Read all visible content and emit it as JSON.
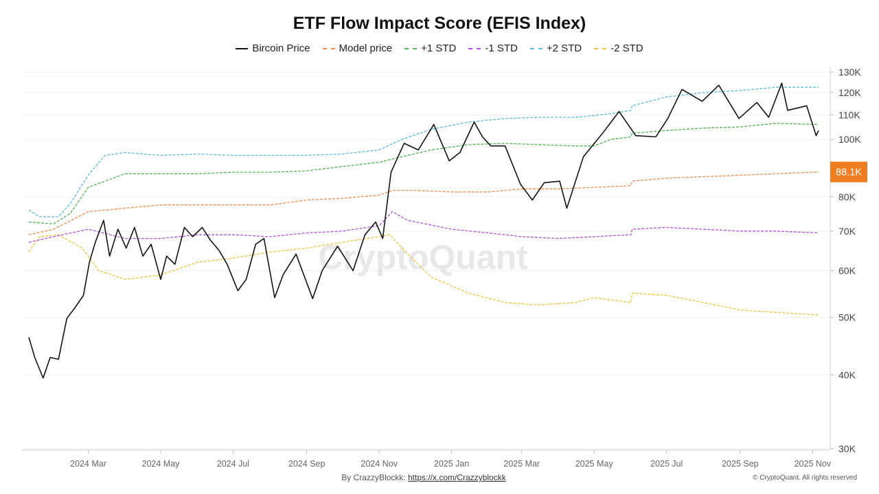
{
  "chart_data": {
    "type": "line",
    "title": "ETF Flow Impact Score (EFIS Index)",
    "xlabel": "",
    "ylabel": "",
    "y_scale": "log",
    "ylim": [
      30000,
      130000
    ],
    "xlim": [
      "2024-01-11",
      "2025-11-06"
    ],
    "x_tick_labels": [
      "2024 Mar",
      "2024 May",
      "2024 Jul",
      "2024 Sep",
      "2024 Nov",
      "2025 Jan",
      "2025 Mar",
      "2025 May",
      "2025 Jul",
      "2025 Sep",
      "2025 Nov"
    ],
    "x_ticks": [
      "2024-03-01",
      "2024-05-01",
      "2024-07-01",
      "2024-09-01",
      "2024-11-01",
      "2025-01-01",
      "2025-03-01",
      "2025-05-01",
      "2025-07-01",
      "2025-09-01",
      "2025-11-01"
    ],
    "y_tick_labels": [
      "30K",
      "40K",
      "50K",
      "60K",
      "70K",
      "80K",
      "100K",
      "110K",
      "120K",
      "130K"
    ],
    "y_ticks": [
      30000,
      40000,
      50000,
      60000,
      70000,
      80000,
      100000,
      110000,
      120000,
      130000
    ],
    "current_value_label": "88.1K",
    "current_value": 88100,
    "grid": true,
    "legend_position": "top-center",
    "series": [
      {
        "name": "Bircoin Price",
        "color": "#111111",
        "dash": "solid",
        "points": [
          [
            "2024-01-11",
            46300
          ],
          [
            "2024-01-16",
            42800
          ],
          [
            "2024-01-23",
            39500
          ],
          [
            "2024-01-29",
            42800
          ],
          [
            "2024-02-05",
            42500
          ],
          [
            "2024-02-12",
            49800
          ],
          [
            "2024-02-19",
            52000
          ],
          [
            "2024-02-26",
            54500
          ],
          [
            "2024-03-02",
            62000
          ],
          [
            "2024-03-07",
            67000
          ],
          [
            "2024-03-14",
            73000
          ],
          [
            "2024-03-19",
            63500
          ],
          [
            "2024-03-26",
            70500
          ],
          [
            "2024-04-02",
            65500
          ],
          [
            "2024-04-09",
            71000
          ],
          [
            "2024-04-16",
            63500
          ],
          [
            "2024-04-23",
            66500
          ],
          [
            "2024-05-01",
            58000
          ],
          [
            "2024-05-06",
            63500
          ],
          [
            "2024-05-13",
            61500
          ],
          [
            "2024-05-21",
            71000
          ],
          [
            "2024-05-28",
            68500
          ],
          [
            "2024-06-05",
            71000
          ],
          [
            "2024-06-12",
            67500
          ],
          [
            "2024-06-19",
            65000
          ],
          [
            "2024-06-26",
            61500
          ],
          [
            "2024-07-05",
            55500
          ],
          [
            "2024-07-12",
            58000
          ],
          [
            "2024-07-20",
            66500
          ],
          [
            "2024-07-27",
            68000
          ],
          [
            "2024-08-05",
            54000
          ],
          [
            "2024-08-12",
            59000
          ],
          [
            "2024-08-23",
            64000
          ],
          [
            "2024-09-06",
            53800
          ],
          [
            "2024-09-14",
            60000
          ],
          [
            "2024-09-27",
            66000
          ],
          [
            "2024-10-10",
            60000
          ],
          [
            "2024-10-20",
            69000
          ],
          [
            "2024-10-29",
            72500
          ],
          [
            "2024-11-04",
            68000
          ],
          [
            "2024-11-11",
            88000
          ],
          [
            "2024-11-22",
            98500
          ],
          [
            "2024-12-04",
            96000
          ],
          [
            "2024-12-17",
            106000
          ],
          [
            "2024-12-30",
            92000
          ],
          [
            "2025-01-08",
            95000
          ],
          [
            "2025-01-20",
            107000
          ],
          [
            "2025-01-27",
            101000
          ],
          [
            "2025-02-03",
            97500
          ],
          [
            "2025-02-15",
            97500
          ],
          [
            "2025-02-28",
            84000
          ],
          [
            "2025-03-10",
            79000
          ],
          [
            "2025-03-20",
            84500
          ],
          [
            "2025-04-02",
            85000
          ],
          [
            "2025-04-08",
            76500
          ],
          [
            "2025-04-22",
            93500
          ],
          [
            "2025-05-09",
            103000
          ],
          [
            "2025-05-22",
            111500
          ],
          [
            "2025-06-05",
            101500
          ],
          [
            "2025-06-22",
            101000
          ],
          [
            "2025-07-02",
            108500
          ],
          [
            "2025-07-14",
            121500
          ],
          [
            "2025-07-31",
            116000
          ],
          [
            "2025-08-14",
            123500
          ],
          [
            "2025-08-31",
            108500
          ],
          [
            "2025-09-15",
            115500
          ],
          [
            "2025-09-25",
            109000
          ],
          [
            "2025-10-06",
            124500
          ],
          [
            "2025-10-11",
            112000
          ],
          [
            "2025-10-27",
            114000
          ],
          [
            "2025-11-04",
            101500
          ],
          [
            "2025-11-06",
            103500
          ]
        ]
      },
      {
        "name": "Model price",
        "color": "#f08a4b",
        "dash": "dashed",
        "points": [
          [
            "2024-01-11",
            69000
          ],
          [
            "2024-02-01",
            70500
          ],
          [
            "2024-03-01",
            75500
          ],
          [
            "2024-04-01",
            76500
          ],
          [
            "2024-05-01",
            77500
          ],
          [
            "2024-06-01",
            77500
          ],
          [
            "2024-07-01",
            77500
          ],
          [
            "2024-08-01",
            77500
          ],
          [
            "2024-09-01",
            79000
          ],
          [
            "2024-10-01",
            79500
          ],
          [
            "2024-11-01",
            80500
          ],
          [
            "2024-11-12",
            82000
          ],
          [
            "2024-12-01",
            82000
          ],
          [
            "2025-01-01",
            81500
          ],
          [
            "2025-02-01",
            81500
          ],
          [
            "2025-03-01",
            82500
          ],
          [
            "2025-04-01",
            82500
          ],
          [
            "2025-05-01",
            83000
          ],
          [
            "2025-06-01",
            83500
          ],
          [
            "2025-06-02",
            85000
          ],
          [
            "2025-07-01",
            86000
          ],
          [
            "2025-08-01",
            86500
          ],
          [
            "2025-09-01",
            87000
          ],
          [
            "2025-10-01",
            87500
          ],
          [
            "2025-11-06",
            88100
          ]
        ]
      },
      {
        "name": "+1 STD",
        "color": "#4cb44c",
        "dash": "dashed",
        "points": [
          [
            "2024-01-11",
            72500
          ],
          [
            "2024-02-01",
            72000
          ],
          [
            "2024-02-15",
            75000
          ],
          [
            "2024-03-01",
            83000
          ],
          [
            "2024-04-01",
            87500
          ],
          [
            "2024-05-01",
            87500
          ],
          [
            "2024-06-01",
            87500
          ],
          [
            "2024-07-01",
            88000
          ],
          [
            "2024-08-01",
            88000
          ],
          [
            "2024-09-01",
            88500
          ],
          [
            "2024-10-01",
            90000
          ],
          [
            "2024-11-01",
            91500
          ],
          [
            "2024-11-20",
            93500
          ],
          [
            "2024-12-15",
            96000
          ],
          [
            "2025-01-15",
            98000
          ],
          [
            "2025-02-15",
            98500
          ],
          [
            "2025-03-15",
            98000
          ],
          [
            "2025-04-15",
            97500
          ],
          [
            "2025-05-01",
            97500
          ],
          [
            "2025-05-15",
            100000
          ],
          [
            "2025-06-01",
            101000
          ],
          [
            "2025-06-02",
            102500
          ],
          [
            "2025-07-01",
            103500
          ],
          [
            "2025-08-01",
            104500
          ],
          [
            "2025-09-01",
            105000
          ],
          [
            "2025-10-01",
            106500
          ],
          [
            "2025-11-06",
            106000
          ]
        ]
      },
      {
        "name": "-1 STD",
        "color": "#b64ce0",
        "dash": "dashed",
        "points": [
          [
            "2024-01-11",
            67000
          ],
          [
            "2024-02-01",
            68500
          ],
          [
            "2024-03-01",
            70500
          ],
          [
            "2024-04-01",
            68000
          ],
          [
            "2024-05-01",
            68000
          ],
          [
            "2024-06-01",
            69000
          ],
          [
            "2024-07-01",
            69000
          ],
          [
            "2024-08-01",
            68500
          ],
          [
            "2024-09-01",
            69500
          ],
          [
            "2024-10-01",
            70000
          ],
          [
            "2024-11-01",
            71500
          ],
          [
            "2024-11-12",
            75500
          ],
          [
            "2024-11-25",
            73000
          ],
          [
            "2025-01-01",
            70500
          ],
          [
            "2025-02-01",
            69500
          ],
          [
            "2025-03-01",
            68500
          ],
          [
            "2025-04-01",
            68000
          ],
          [
            "2025-05-01",
            68500
          ],
          [
            "2025-06-01",
            69000
          ],
          [
            "2025-06-02",
            70500
          ],
          [
            "2025-07-01",
            71000
          ],
          [
            "2025-08-01",
            70500
          ],
          [
            "2025-09-01",
            70000
          ],
          [
            "2025-10-01",
            70000
          ],
          [
            "2025-11-06",
            69500
          ]
        ]
      },
      {
        "name": "+2 STD",
        "color": "#5bbcd8",
        "dash": "dashed",
        "points": [
          [
            "2024-01-11",
            76000
          ],
          [
            "2024-01-20",
            74000
          ],
          [
            "2024-02-05",
            74000
          ],
          [
            "2024-02-15",
            78000
          ],
          [
            "2024-03-01",
            87000
          ],
          [
            "2024-03-15",
            94000
          ],
          [
            "2024-04-01",
            95000
          ],
          [
            "2024-05-01",
            94000
          ],
          [
            "2024-06-01",
            94500
          ],
          [
            "2024-07-01",
            94000
          ],
          [
            "2024-08-01",
            94000
          ],
          [
            "2024-09-01",
            94000
          ],
          [
            "2024-10-01",
            94500
          ],
          [
            "2024-11-01",
            96000
          ],
          [
            "2024-11-20",
            100000
          ],
          [
            "2024-12-15",
            104000
          ],
          [
            "2025-01-15",
            107000
          ],
          [
            "2025-02-15",
            108500
          ],
          [
            "2025-03-15",
            109000
          ],
          [
            "2025-04-15",
            109000
          ],
          [
            "2025-05-15",
            110500
          ],
          [
            "2025-06-01",
            112000
          ],
          [
            "2025-06-02",
            114000
          ],
          [
            "2025-07-01",
            118000
          ],
          [
            "2025-08-01",
            120000
          ],
          [
            "2025-09-01",
            121000
          ],
          [
            "2025-10-01",
            122500
          ],
          [
            "2025-11-06",
            122500
          ]
        ]
      },
      {
        "name": "-2 STD",
        "color": "#f2c23a",
        "dash": "dashed",
        "points": [
          [
            "2024-01-11",
            64500
          ],
          [
            "2024-01-20",
            68500
          ],
          [
            "2024-02-05",
            69000
          ],
          [
            "2024-02-25",
            65500
          ],
          [
            "2024-03-10",
            60000
          ],
          [
            "2024-04-01",
            58000
          ],
          [
            "2024-05-01",
            59000
          ],
          [
            "2024-06-01",
            62000
          ],
          [
            "2024-07-01",
            63000
          ],
          [
            "2024-08-01",
            64500
          ],
          [
            "2024-09-01",
            65500
          ],
          [
            "2024-10-01",
            67000
          ],
          [
            "2024-11-01",
            68500
          ],
          [
            "2024-11-10",
            69000
          ],
          [
            "2024-11-25",
            64000
          ],
          [
            "2024-12-15",
            58500
          ],
          [
            "2025-01-15",
            55000
          ],
          [
            "2025-02-15",
            53000
          ],
          [
            "2025-03-15",
            52500
          ],
          [
            "2025-04-15",
            53000
          ],
          [
            "2025-05-01",
            54000
          ],
          [
            "2025-06-01",
            53000
          ],
          [
            "2025-06-02",
            55000
          ],
          [
            "2025-07-01",
            54500
          ],
          [
            "2025-08-01",
            53000
          ],
          [
            "2025-09-01",
            51500
          ],
          [
            "2025-10-01",
            51000
          ],
          [
            "2025-11-06",
            50500
          ]
        ]
      }
    ]
  },
  "watermark": "CryptoQuant",
  "footer": {
    "credit_prefix": "By CrazzyBlockk:",
    "credit_link": "https://x.com/Crazzyblockk",
    "copyright": "© CryptoQuant. All rights reserved"
  }
}
